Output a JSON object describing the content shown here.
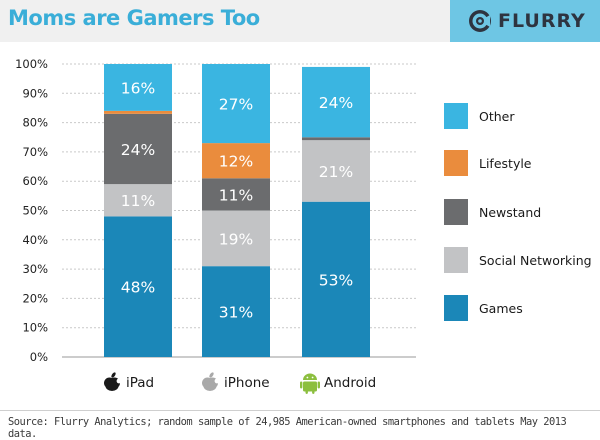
{
  "header": {
    "title": "Moms are Gamers Too",
    "brand_name": "FLURRY",
    "brand_icon": "flurry-logo-icon"
  },
  "chart_data": {
    "type": "bar",
    "stacked": true,
    "title": "Moms are Gamers Too",
    "categories": [
      "iPad",
      "iPhone",
      "Android"
    ],
    "category_icons": [
      "apple-icon",
      "apple-icon",
      "android-icon"
    ],
    "y_axis": {
      "min": 0,
      "max": 100,
      "step": 10,
      "unit": "%",
      "ticks": [
        "0%",
        "10%",
        "20%",
        "30%",
        "40%",
        "50%",
        "60%",
        "70%",
        "80%",
        "90%",
        "100%"
      ]
    },
    "grid": true,
    "legend_position": "right",
    "series": [
      {
        "name": "Games",
        "color": "#1b87b8",
        "values": [
          48,
          31,
          53
        ],
        "labels": [
          "48%",
          "31%",
          "53%"
        ]
      },
      {
        "name": "Social Networking",
        "color": "#c2c3c5",
        "values": [
          11,
          19,
          21
        ],
        "labels": [
          "11%",
          "19%",
          "21%"
        ]
      },
      {
        "name": "Newstand",
        "color": "#6b6c6e",
        "values": [
          24,
          11,
          1
        ],
        "labels": [
          "24%",
          "11%",
          ""
        ]
      },
      {
        "name": "Lifestyle",
        "color": "#ea8c3d",
        "values": [
          1,
          12,
          0
        ],
        "labels": [
          "",
          "12%",
          ""
        ]
      },
      {
        "name": "Other",
        "color": "#3ab5e1",
        "values": [
          16,
          27,
          24
        ],
        "labels": [
          "16%",
          "27%",
          "24%"
        ]
      }
    ],
    "legend_order": [
      "Other",
      "Lifestyle",
      "Newstand",
      "Social Networking",
      "Games"
    ]
  },
  "footer": {
    "source": "Source: Flurry Analytics; random sample of 24,985 American-owned smartphones and tablets May 2013 data."
  }
}
